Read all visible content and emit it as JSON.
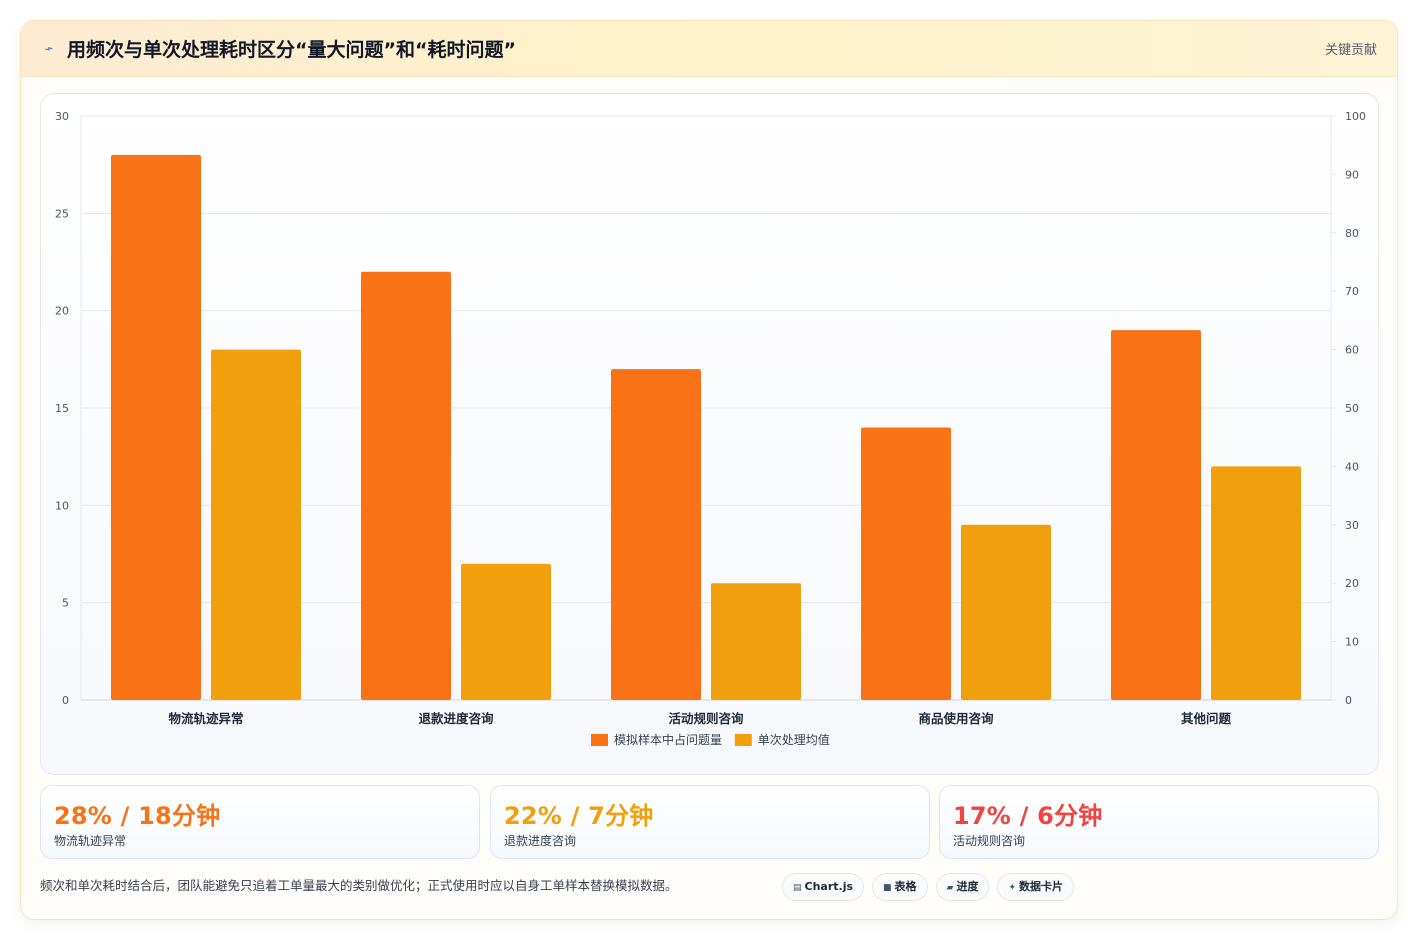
{
  "header": {
    "title": "用频次与单次处理耗时区分“量大问题”和“耗时问题”",
    "right_label": "关键贡献"
  },
  "chart_data": {
    "type": "bar",
    "categories": [
      "物流轨迹异常",
      "退款进度咨询",
      "活动规则咨询",
      "商品使用咨询",
      "其他问题"
    ],
    "series": [
      {
        "name": "模拟样本中占问题量",
        "values": [
          28,
          22,
          17,
          14,
          19
        ],
        "axis": "left",
        "color": "#f97316"
      },
      {
        "name": "单次处理均值",
        "values": [
          60,
          23.3,
          20,
          30,
          40
        ],
        "axis": "right",
        "color": "#f29f0e"
      }
    ],
    "y_left": {
      "min": 0,
      "max": 30,
      "ticks": [
        0,
        5,
        10,
        15,
        20,
        25,
        30
      ]
    },
    "y_right": {
      "min": 0,
      "max": 100,
      "ticks": [
        0,
        10,
        20,
        30,
        40,
        50,
        60,
        70,
        80,
        90,
        100
      ]
    },
    "grid": true,
    "legend_position": "bottom"
  },
  "stats": [
    {
      "value": "28% / 18分钟",
      "label": "物流轨迹异常",
      "color": "#f97316"
    },
    {
      "value": "22% / 7分钟",
      "label": "退款进度咨询",
      "color": "#f29f0e"
    },
    {
      "value": "17% / 6分钟",
      "label": "活动规则咨询",
      "color": "#ef4444"
    }
  ],
  "footer": {
    "note": "频次和单次耗时结合后，团队能避免只追着工单量最大的类别做优化；正式使用时应以自身工单样本替换模拟数据。",
    "chips": [
      {
        "icon": "chart-icon",
        "label": "Chart.js"
      },
      {
        "icon": "table-icon",
        "label": "表格"
      },
      {
        "icon": "progress-icon",
        "label": "进度"
      },
      {
        "icon": "sparkle-icon",
        "label": "数据卡片"
      }
    ]
  }
}
